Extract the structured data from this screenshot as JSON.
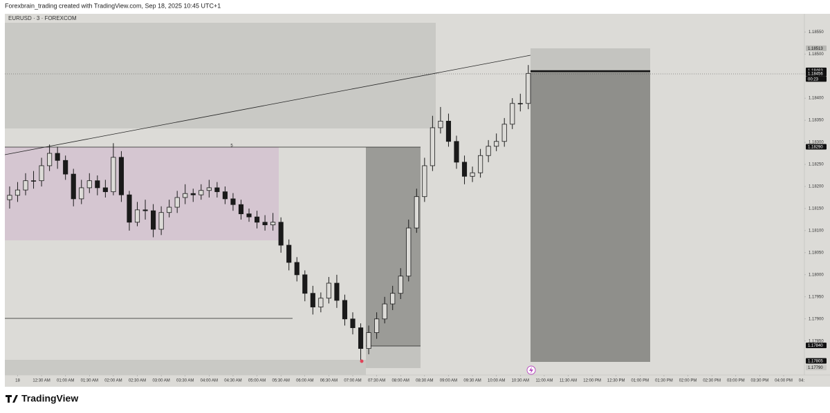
{
  "chart_data": {
    "type": "candlestick",
    "header": "Forexbrain_trading created with TradingView.com, Sep 18, 2025 10:45 UTC+1",
    "symbol": "EURUSD · 3 · FOREXCOM",
    "logo": "TradingView",
    "color": "#1a1a1a",
    "x": [
      -10,
      0,
      10,
      20,
      30,
      40,
      50,
      60,
      70,
      80,
      90,
      100,
      110,
      120,
      130,
      140,
      150,
      160,
      170,
      180,
      190,
      200,
      210,
      220,
      230,
      240,
      250,
      260,
      270,
      280,
      290,
      300,
      310,
      320,
      330,
      340,
      350,
      360,
      370,
      380,
      390,
      400,
      410,
      420,
      430,
      440,
      450,
      460,
      470,
      480,
      490,
      500,
      510,
      520,
      530,
      540,
      550,
      560,
      570,
      580,
      590,
      600,
      610,
      620,
      630,
      640
    ],
    "open": [
      1.1817,
      1.1818,
      1.18192,
      1.18213,
      1.18213,
      1.18247,
      1.18275,
      1.18259,
      1.18228,
      1.18172,
      1.18197,
      1.18213,
      1.18197,
      1.18188,
      1.18266,
      1.18181,
      1.18119,
      1.18147,
      1.18145,
      1.18103,
      1.18141,
      1.18153,
      1.18175,
      1.18184,
      1.18181,
      1.18191,
      1.18197,
      1.18188,
      1.18172,
      1.18159,
      1.18138,
      1.18131,
      1.18119,
      1.18113,
      1.18119,
      1.18067,
      1.18028,
      1.18,
      1.17958,
      1.17927,
      1.17947,
      1.17981,
      1.17942,
      1.179,
      1.1788,
      1.17833,
      1.17869,
      1.179,
      1.17934,
      1.17958,
      1.17997,
      1.18106,
      1.18177,
      1.18247,
      1.18333,
      1.18348,
      1.18302,
      1.18255,
      1.18223,
      1.18231,
      1.1827,
      1.18291,
      1.18302,
      1.18341,
      1.18388,
      1.18388
    ],
    "high": [
      1.182,
      1.1821,
      1.1823,
      1.18235,
      1.18265,
      1.18295,
      1.1829,
      1.1827,
      1.1824,
      1.18215,
      1.1823,
      1.18225,
      1.18215,
      1.18298,
      1.1828,
      1.1819,
      1.18165,
      1.1817,
      1.1816,
      1.18155,
      1.1817,
      1.1819,
      1.18205,
      1.18195,
      1.18205,
      1.18215,
      1.1821,
      1.182,
      1.18185,
      1.1817,
      1.1815,
      1.18145,
      1.18135,
      1.1814,
      1.1813,
      1.1808,
      1.1804,
      1.1801,
      1.17975,
      1.1796,
      1.17995,
      1.18,
      1.17955,
      1.17915,
      1.1789,
      1.17885,
      1.17915,
      1.1795,
      1.17975,
      1.18015,
      1.18125,
      1.18195,
      1.18265,
      1.1836,
      1.1838,
      1.18365,
      1.18315,
      1.1827,
      1.18245,
      1.18285,
      1.18305,
      1.1832,
      1.18355,
      1.184,
      1.1841,
      1.18475
    ],
    "low": [
      1.1815,
      1.18165,
      1.1818,
      1.18195,
      1.182,
      1.18235,
      1.1824,
      1.18215,
      1.18155,
      1.1816,
      1.18185,
      1.1818,
      1.18175,
      1.1818,
      1.18165,
      1.181,
      1.1811,
      1.18125,
      1.18085,
      1.1809,
      1.1813,
      1.1814,
      1.1816,
      1.18165,
      1.1817,
      1.18175,
      1.18175,
      1.1816,
      1.18145,
      1.18125,
      1.1812,
      1.18105,
      1.181,
      1.181,
      1.1805,
      1.1801,
      1.17985,
      1.1794,
      1.1791,
      1.17915,
      1.17935,
      1.17925,
      1.17885,
      1.17865,
      1.17805,
      1.1782,
      1.17855,
      1.1789,
      1.1792,
      1.17945,
      1.17985,
      1.18095,
      1.18165,
      1.18235,
      1.1832,
      1.1829,
      1.1824,
      1.18205,
      1.1821,
      1.1822,
      1.18255,
      1.1828,
      1.1829,
      1.1833,
      1.1837,
      1.18375
    ],
    "close": [
      1.1818,
      1.18192,
      1.18213,
      1.18213,
      1.18247,
      1.18275,
      1.18259,
      1.18228,
      1.18172,
      1.18197,
      1.18213,
      1.18197,
      1.18188,
      1.18266,
      1.18181,
      1.18119,
      1.18147,
      1.18145,
      1.18103,
      1.18141,
      1.18153,
      1.18175,
      1.18184,
      1.18181,
      1.18191,
      1.18197,
      1.18188,
      1.18172,
      1.18159,
      1.18138,
      1.18131,
      1.18119,
      1.18113,
      1.18119,
      1.18067,
      1.18028,
      1.18,
      1.17958,
      1.17927,
      1.17947,
      1.17981,
      1.17942,
      1.179,
      1.1788,
      1.17833,
      1.17869,
      1.179,
      1.17934,
      1.17958,
      1.17997,
      1.18106,
      1.18177,
      1.18247,
      1.18333,
      1.18348,
      1.18302,
      1.18255,
      1.18223,
      1.18231,
      1.1827,
      1.18291,
      1.18302,
      1.18341,
      1.18388,
      1.18388,
      1.18456
    ],
    "xlim": [
      -16,
      986
    ],
    "ylim": [
      1.17773,
      1.18591
    ],
    "xticks": [
      {
        "value": 0,
        "label": "18"
      },
      {
        "value": 30,
        "label": "12:30 AM"
      },
      {
        "value": 60,
        "label": "01:00 AM"
      },
      {
        "value": 90,
        "label": "01:30 AM"
      },
      {
        "value": 120,
        "label": "02:00 AM"
      },
      {
        "value": 150,
        "label": "02:30 AM"
      },
      {
        "value": 180,
        "label": "03:00 AM"
      },
      {
        "value": 210,
        "label": "03:30 AM"
      },
      {
        "value": 240,
        "label": "04:00 AM"
      },
      {
        "value": 270,
        "label": "04:30 AM"
      },
      {
        "value": 300,
        "label": "05:00 AM"
      },
      {
        "value": 330,
        "label": "05:30 AM"
      },
      {
        "value": 360,
        "label": "06:00 AM"
      },
      {
        "value": 390,
        "label": "06:30 AM"
      },
      {
        "value": 420,
        "label": "07:00 AM"
      },
      {
        "value": 450,
        "label": "07:30 AM"
      },
      {
        "value": 480,
        "label": "08:00 AM"
      },
      {
        "value": 510,
        "label": "08:30 AM"
      },
      {
        "value": 540,
        "label": "09:00 AM"
      },
      {
        "value": 570,
        "label": "09:30 AM"
      },
      {
        "value": 600,
        "label": "10:00 AM"
      },
      {
        "value": 630,
        "label": "10:30 AM"
      },
      {
        "value": 660,
        "label": "11:00 AM"
      },
      {
        "value": 690,
        "label": "11:30 AM"
      },
      {
        "value": 720,
        "label": "12:00 PM"
      },
      {
        "value": 750,
        "label": "12:30 PM"
      },
      {
        "value": 780,
        "label": "01:00 PM"
      },
      {
        "value": 810,
        "label": "01:30 PM"
      },
      {
        "value": 840,
        "label": "02:00 PM"
      },
      {
        "value": 870,
        "label": "02:30 PM"
      },
      {
        "value": 900,
        "label": "03:00 PM"
      },
      {
        "value": 930,
        "label": "03:30 PM"
      },
      {
        "value": 960,
        "label": "04:00 PM"
      },
      {
        "value": 990,
        "label": "04:30 PM"
      }
    ],
    "yticks": [
      {
        "value": 1.1855,
        "label": "1.18550"
      },
      {
        "value": 1.185,
        "label": "1.18500"
      },
      {
        "value": 1.184,
        "label": "1.18400"
      },
      {
        "value": 1.1835,
        "label": "1.18350"
      },
      {
        "value": 1.183,
        "label": "1.18300"
      },
      {
        "value": 1.1825,
        "label": "1.18250"
      },
      {
        "value": 1.182,
        "label": "1.18200"
      },
      {
        "value": 1.1815,
        "label": "1.18150"
      },
      {
        "value": 1.181,
        "label": "1.18100"
      },
      {
        "value": 1.1805,
        "label": "1.18050"
      },
      {
        "value": 1.18,
        "label": "1.18000"
      },
      {
        "value": 1.1795,
        "label": "1.17950"
      },
      {
        "value": 1.179,
        "label": "1.17900"
      },
      {
        "value": 1.1785,
        "label": "1.17850"
      }
    ],
    "price_labels": [
      {
        "value": 1.18513,
        "label": "1.18513",
        "color": "#b8b8b4",
        "text_color": "#111111"
      },
      {
        "value": 1.18463,
        "label": "1.18463",
        "color": "#111111",
        "text_color": "#ffffff"
      },
      {
        "value": 1.18456,
        "label": "1.18456",
        "color": "#111111",
        "text_color": "#ffffff"
      },
      {
        "value": 1.1829,
        "label": "1.18290",
        "color": "#111111",
        "text_color": "#ffffff"
      },
      {
        "value": 1.1784,
        "label": "1.17840",
        "color": "#111111",
        "text_color": "#ffffff"
      },
      {
        "value": 1.17805,
        "label": "1.17805",
        "color": "#111111",
        "text_color": "#ffffff"
      },
      {
        "value": 1.1779,
        "label": "1.17790",
        "color": "#c8c8c4",
        "text_color": "#111111"
      }
    ],
    "countdown": "00:23",
    "line_label": "5"
  }
}
